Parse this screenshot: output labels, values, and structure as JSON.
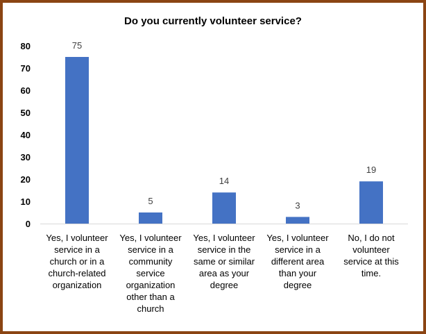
{
  "chart_data": {
    "type": "bar",
    "title": "Do you currently volunteer service?",
    "categories": [
      "Yes, I volunteer service in a church or in a church-related organization",
      "Yes, I volunteer service in a community service organization other than a church",
      "Yes, I volunteer service in the same or similar area as your degree",
      "Yes, I volunteer service in a different area than your degree",
      "No, I do not volunteer service at this time."
    ],
    "category_lines": [
      [
        "Yes, I volunteer",
        "service in a",
        "church or in a",
        "church-related",
        "organization"
      ],
      [
        "Yes, I volunteer",
        "service in a",
        "community",
        "service",
        "organization",
        "other than a",
        "church"
      ],
      [
        "Yes, I volunteer",
        "service in the",
        "same or similar",
        "area as your",
        "degree"
      ],
      [
        "Yes, I volunteer",
        "service in a",
        "different area",
        "than your",
        "degree"
      ],
      [
        "No, I do not",
        "volunteer",
        "service at this",
        "time."
      ]
    ],
    "values": [
      75,
      5,
      14,
      3,
      19
    ],
    "ylim": [
      0,
      80
    ],
    "yticks": [
      "0",
      "10",
      "20",
      "30",
      "40",
      "50",
      "60",
      "70",
      "80"
    ],
    "xlabel": "",
    "ylabel": "",
    "grid": false,
    "bar_color": "#4472C4"
  }
}
